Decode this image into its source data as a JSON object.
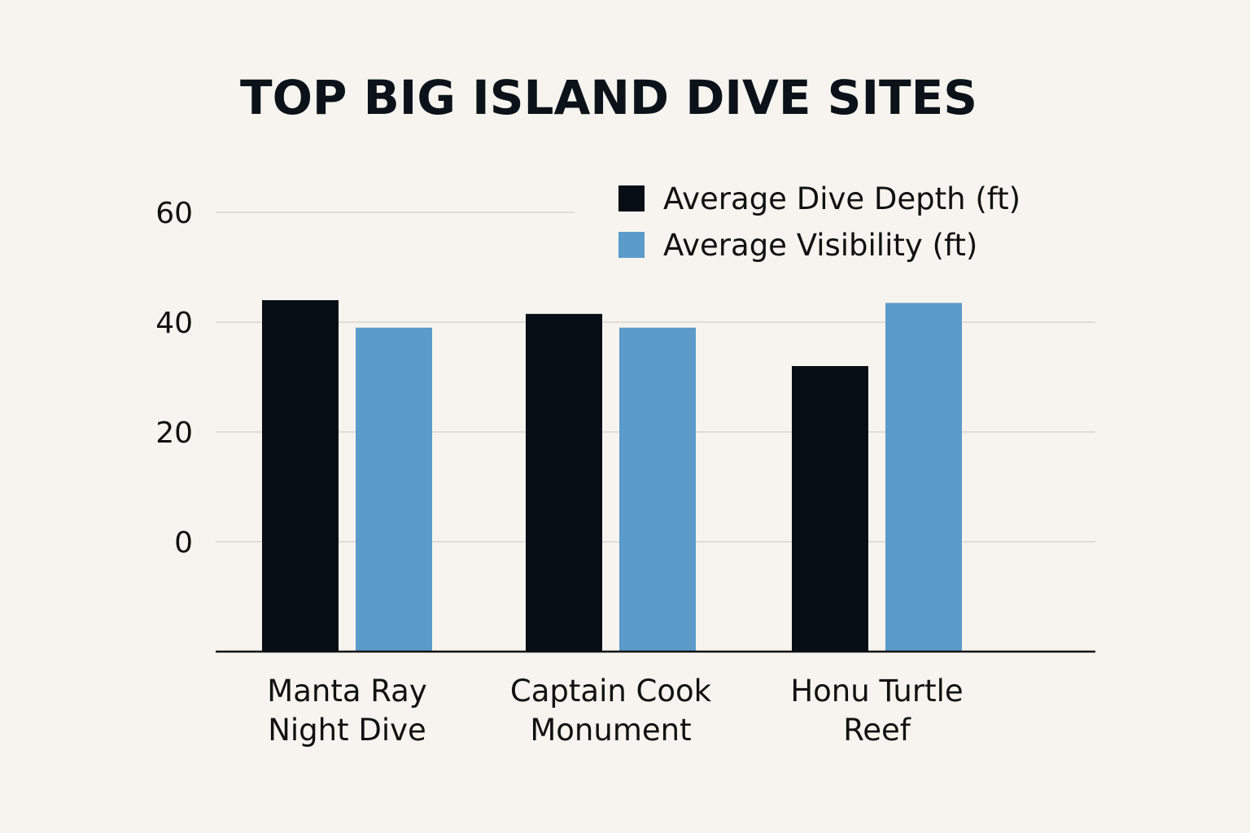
{
  "chart_data": {
    "type": "bar",
    "title": "TOP BIG ISLAND DIVE SITES",
    "categories": [
      [
        "Manta Ray",
        "Night Dive"
      ],
      [
        "Captain Cook",
        "Monument"
      ],
      [
        "Honu Turtle",
        "Reef"
      ]
    ],
    "series": [
      {
        "name": "Average Dive Depth (ft)",
        "values": [
          44,
          41.5,
          32
        ],
        "color": "#070e15"
      },
      {
        "name": "Average Visibility (ft)",
        "values": [
          39,
          39,
          43.5
        ],
        "color": "#5b9bc9"
      }
    ],
    "yticks": [
      0,
      20,
      40,
      60
    ],
    "ylim": [
      -20,
      60
    ],
    "grid": true,
    "legend": "top-right"
  }
}
